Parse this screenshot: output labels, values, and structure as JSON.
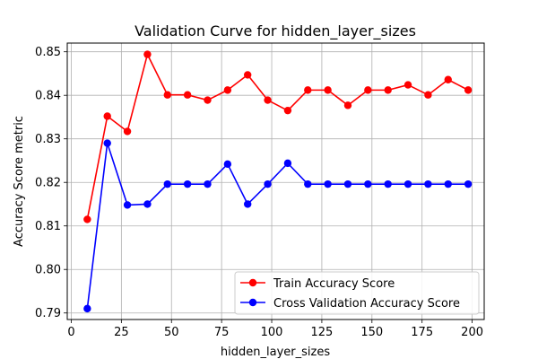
{
  "chart_data": {
    "type": "line",
    "title": "Validation Curve for hidden_layer_sizes",
    "xlabel": "hidden_layer_sizes",
    "ylabel": "Accuracy Score metric",
    "xlim": [
      -2,
      206
    ],
    "ylim": [
      0.7885,
      0.852
    ],
    "xticks": [
      0,
      25,
      50,
      75,
      100,
      125,
      150,
      175,
      200
    ],
    "yticks": [
      0.79,
      0.8,
      0.81,
      0.82,
      0.83,
      0.84,
      0.85
    ],
    "ytick_labels": [
      "0.79",
      "0.80",
      "0.81",
      "0.82",
      "0.83",
      "0.84",
      "0.85"
    ],
    "grid": true,
    "legend_position": "lower-right",
    "x": [
      8,
      18,
      28,
      38,
      48,
      58,
      68,
      78,
      88,
      98,
      108,
      118,
      128,
      138,
      148,
      158,
      168,
      178,
      188,
      198
    ],
    "series": [
      {
        "name": "Train Accuracy Score",
        "color": "#ff0000",
        "values": [
          0.8115,
          0.8352,
          0.8317,
          0.8494,
          0.8401,
          0.8401,
          0.8389,
          0.8412,
          0.8447,
          0.8389,
          0.8365,
          0.8412,
          0.8412,
          0.8377,
          0.8412,
          0.8412,
          0.8424,
          0.8401,
          0.8436,
          0.8412
        ]
      },
      {
        "name": "Cross Validation Accuracy Score",
        "color": "#0000ff",
        "values": [
          0.791,
          0.829,
          0.8148,
          0.815,
          0.8196,
          0.8196,
          0.8196,
          0.8242,
          0.815,
          0.8196,
          0.8244,
          0.8196,
          0.8196,
          0.8196,
          0.8196,
          0.8196,
          0.8196,
          0.8196,
          0.8196,
          0.8196
        ]
      }
    ]
  }
}
